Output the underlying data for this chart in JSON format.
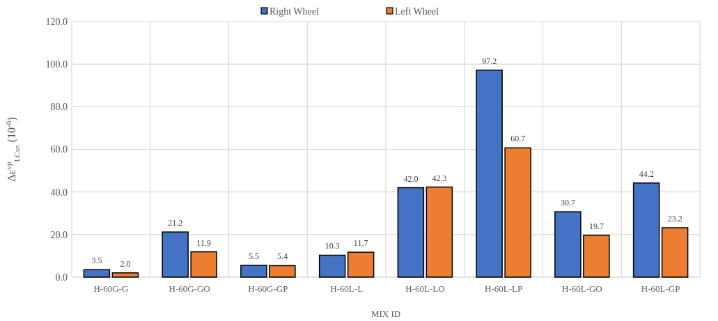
{
  "chart_data": {
    "type": "bar",
    "xlabel": "MIX ID",
    "ylabel": "Δε$^{vp}$$_{LCsn}$ (10$^{-6}$)",
    "categories": [
      "H-60G-G",
      "H-60G-GO",
      "H-60G-GP",
      "H-60L-L",
      "H-60L-LO",
      "H-60L-LP",
      "H-60L-GO",
      "H-60L-GP"
    ],
    "series": [
      {
        "name": "Right Wheel",
        "color": "#4472c4",
        "values": [
          3.5,
          21.2,
          5.5,
          10.3,
          42.0,
          97.2,
          30.7,
          44.2
        ],
        "value_labels": [
          "3.5",
          "21.2",
          "5.5",
          "10.3",
          "42.0",
          "97.2",
          "30.7",
          "44.2"
        ]
      },
      {
        "name": "Left Wheel",
        "color": "#ed7d31",
        "values": [
          2.0,
          11.9,
          5.4,
          11.7,
          42.3,
          60.7,
          19.7,
          23.2
        ],
        "value_labels": [
          "2.0",
          "11.9",
          "5.4",
          "11.7",
          "42.3",
          "60.7",
          "19.7",
          "23.2"
        ]
      }
    ],
    "ylim": [
      0,
      120
    ],
    "yticks": [
      {
        "value": 0,
        "label": "0.0"
      },
      {
        "value": 20,
        "label": "20.0"
      },
      {
        "value": 40,
        "label": "40.0"
      },
      {
        "value": 60,
        "label": "60.0"
      },
      {
        "value": 80,
        "label": "80.0"
      },
      {
        "value": 100,
        "label": "100.0"
      },
      {
        "value": 120,
        "label": "120.0"
      }
    ],
    "grid": true,
    "legend": "top"
  }
}
